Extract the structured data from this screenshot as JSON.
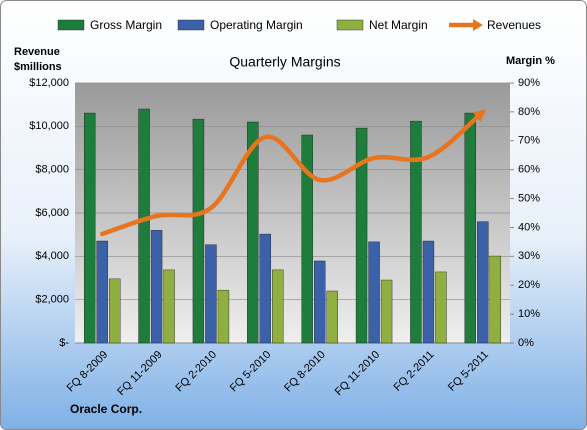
{
  "chart_data": {
    "type": "bar-line",
    "title": "Quarterly Margins",
    "ylabel_lines": [
      "Revenue",
      "$millions"
    ],
    "y2label": "Margin %",
    "footer": "Oracle Corp.",
    "categories": [
      "FQ 8-2009",
      "FQ 11-2009",
      "FQ 2-2010",
      "FQ 5-2010",
      "FQ 8-2010",
      "FQ 11-2010",
      "FQ 2-2011",
      "FQ 5-2011"
    ],
    "series": [
      {
        "name": "Gross Margin",
        "type": "bar",
        "axis": "y2",
        "color": "#1e7d3c",
        "values": [
          79.6,
          81,
          77.5,
          76.5,
          72,
          74.4,
          76.8,
          79.6
        ]
      },
      {
        "name": "Operating Margin",
        "type": "bar",
        "axis": "y2",
        "color": "#3b62a8",
        "values": [
          35.3,
          39,
          34,
          37.7,
          28.4,
          35,
          35.3,
          42
        ]
      },
      {
        "name": "Net Margin",
        "type": "bar",
        "axis": "y2",
        "color": "#8fb040",
        "values": [
          22.2,
          25.3,
          18.3,
          25.3,
          18,
          21.8,
          24.6,
          30.1
        ]
      },
      {
        "name": "Revenues",
        "type": "line",
        "axis": "y",
        "color": "#e8751e",
        "values": [
          5031,
          5862,
          6231,
          9508,
          7523,
          8538,
          8585,
          10662
        ]
      }
    ],
    "ylim": [
      0,
      12000
    ],
    "yticks": [
      {
        "value": 0,
        "label": "$-"
      },
      {
        "value": 2000,
        "label": "$2,000"
      },
      {
        "value": 4000,
        "label": "$4,000"
      },
      {
        "value": 6000,
        "label": "$6,000"
      },
      {
        "value": 8000,
        "label": "$8,000"
      },
      {
        "value": 10000,
        "label": "$10,000"
      },
      {
        "value": 12000,
        "label": "$12,000"
      }
    ],
    "y2lim": [
      0,
      90
    ],
    "y2ticks": [
      {
        "value": 0,
        "label": "0%"
      },
      {
        "value": 10,
        "label": "10%"
      },
      {
        "value": 20,
        "label": "20%"
      },
      {
        "value": 30,
        "label": "30%"
      },
      {
        "value": 40,
        "label": "40%"
      },
      {
        "value": 50,
        "label": "50%"
      },
      {
        "value": 60,
        "label": "60%"
      },
      {
        "value": 70,
        "label": "70%"
      },
      {
        "value": 80,
        "label": "80%"
      },
      {
        "value": 90,
        "label": "90%"
      }
    ],
    "grid": true
  }
}
